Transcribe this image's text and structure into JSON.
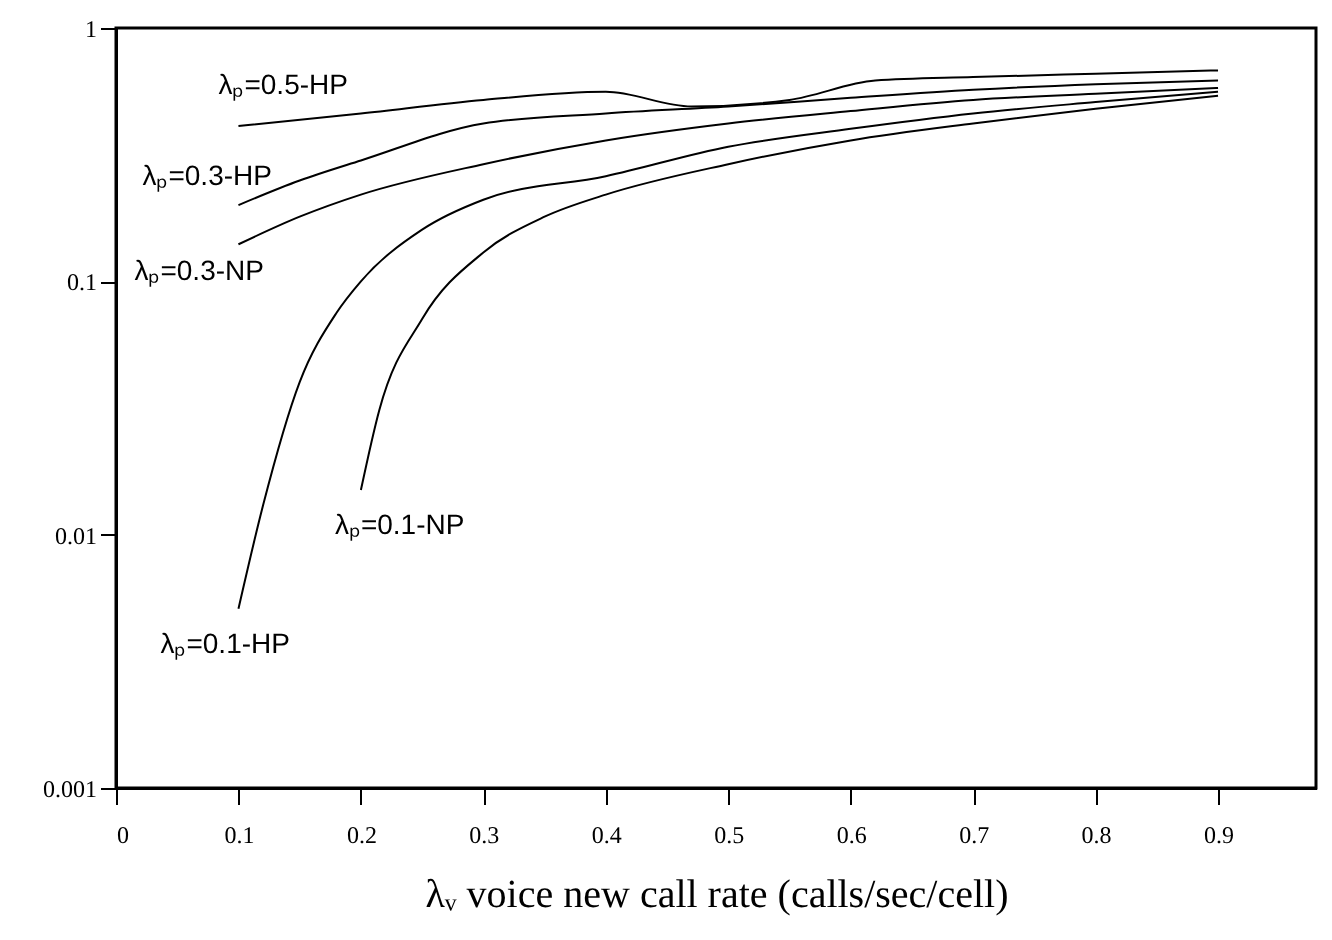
{
  "chart_data": {
    "type": "line",
    "xlabel": "λᵥ  voice new call rate (calls/sec/cell)",
    "xlim": [
      0,
      0.98
    ],
    "xticks": [
      0,
      0.1,
      0.2,
      0.3,
      0.4,
      0.5,
      0.6,
      0.7,
      0.8,
      0.9
    ],
    "ylim": [
      0.001,
      1
    ],
    "yticks": [
      0.001,
      0.01,
      0.1,
      1
    ],
    "log": true,
    "grid": false,
    "marker": "none",
    "line_style": "solid",
    "series": [
      {
        "name": "λₚ=0.5-HP",
        "color": "#000000",
        "x": [
          0.1,
          0.2,
          0.3,
          0.4,
          0.47,
          0.55,
          0.62,
          0.7,
          0.8,
          0.9
        ],
        "values": [
          0.41,
          0.46,
          0.52,
          0.56,
          0.49,
          0.52,
          0.62,
          0.64,
          0.66,
          0.68
        ]
      },
      {
        "name": "λₚ=0.3-HP",
        "color": "#000000",
        "x": [
          0.1,
          0.15,
          0.2,
          0.3,
          0.4,
          0.5,
          0.6,
          0.7,
          0.8,
          0.9
        ],
        "values": [
          0.2,
          0.25,
          0.3,
          0.42,
          0.46,
          0.49,
          0.53,
          0.57,
          0.6,
          0.62
        ]
      },
      {
        "name": "λₚ=0.3-NP",
        "color": "#000000",
        "x": [
          0.1,
          0.15,
          0.2,
          0.3,
          0.4,
          0.5,
          0.6,
          0.7,
          0.8,
          0.9
        ],
        "values": [
          0.14,
          0.18,
          0.22,
          0.29,
          0.36,
          0.42,
          0.47,
          0.52,
          0.55,
          0.58
        ]
      },
      {
        "name": "λₚ=0.1-HP",
        "color": "#000000",
        "x": [
          0.1,
          0.12,
          0.15,
          0.18,
          0.2,
          0.25,
          0.3,
          0.4,
          0.5,
          0.6,
          0.7,
          0.8,
          0.9
        ],
        "values": [
          0.0051,
          0.013,
          0.04,
          0.075,
          0.1,
          0.16,
          0.21,
          0.26,
          0.34,
          0.4,
          0.46,
          0.51,
          0.56
        ]
      },
      {
        "name": "λₚ=0.1-NP",
        "color": "#000000",
        "x": [
          0.2,
          0.215,
          0.25,
          0.3,
          0.35,
          0.4,
          0.5,
          0.6,
          0.7,
          0.8,
          0.9
        ],
        "values": [
          0.015,
          0.031,
          0.071,
          0.13,
          0.18,
          0.22,
          0.29,
          0.36,
          0.42,
          0.48,
          0.54
        ]
      }
    ]
  }
}
